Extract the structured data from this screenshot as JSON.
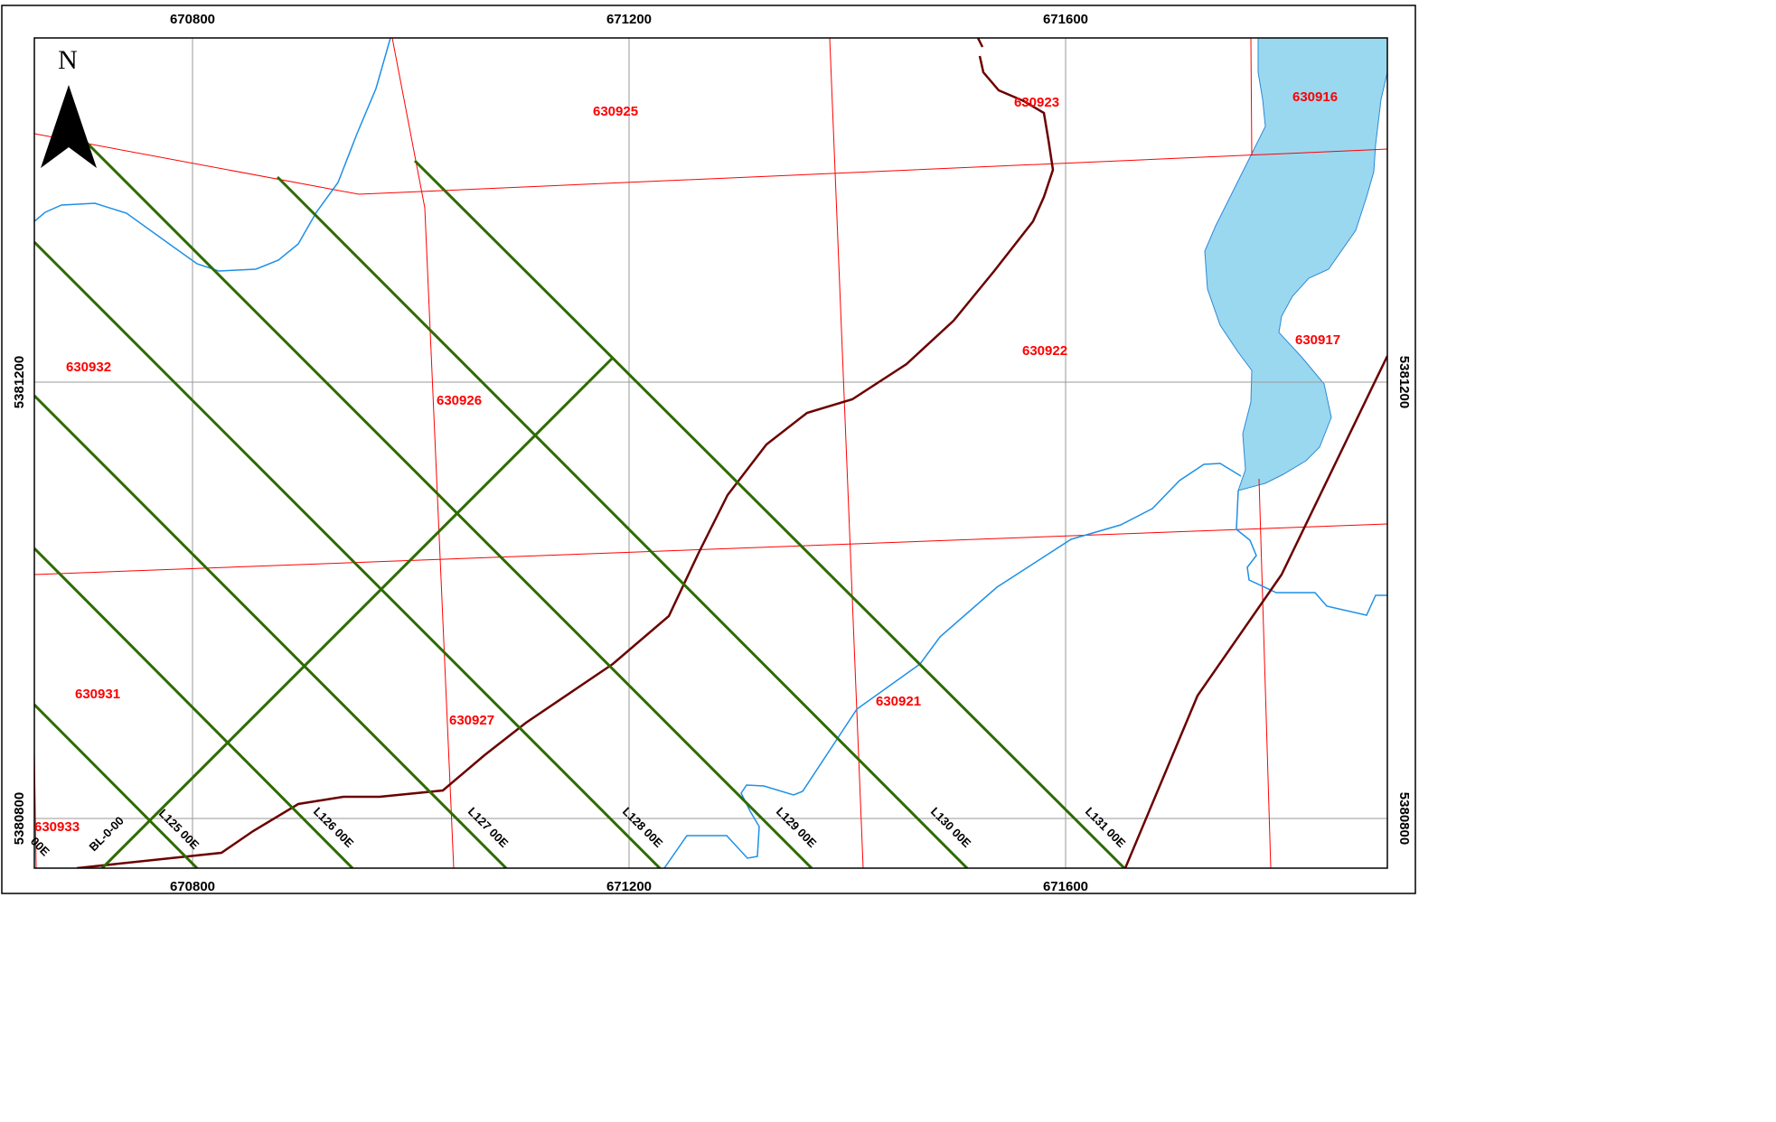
{
  "grid": {
    "x_ticks_top": [
      "670800",
      "671200",
      "671600"
    ],
    "x_ticks_bottom": [
      "670800",
      "671200",
      "671600"
    ],
    "y_ticks_left": [
      "5381200",
      "5380800"
    ],
    "y_ticks_right": [
      "5381200",
      "5380800"
    ]
  },
  "north_arrow": {
    "label": "N",
    "icon": "north-arrow-icon"
  },
  "claims": [
    "630925",
    "630923",
    "630916",
    "630932",
    "630926",
    "630922",
    "630917",
    "630931",
    "630927",
    "630921",
    "630933"
  ],
  "survey_lines": [
    "00E",
    "BL-0-00",
    "L125 00E",
    "L126 00E",
    "L127 00E",
    "L128 00E",
    "L129 00E",
    "L130 00E",
    "L131 00E"
  ],
  "colors": {
    "claim_boundary": "#ff0000",
    "claim_label": "#ff0000",
    "survey_line": "#2e6b00",
    "road": "#6b0000",
    "stream": "#1e90e6",
    "lake_fill": "#9ad8f0",
    "grid": "#9a9a9a",
    "frame": "#000000"
  }
}
